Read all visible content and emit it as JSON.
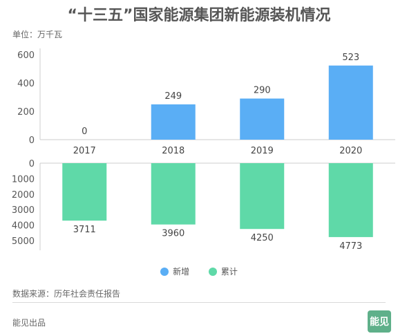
{
  "title": "“十三五”国家能源集团新能源装机情况",
  "unit_label": "单位：万千瓦",
  "chart_data": {
    "type": "bar",
    "categories": [
      "2017",
      "2018",
      "2019",
      "2020"
    ],
    "series": [
      {
        "name": "新增",
        "values": [
          0,
          249,
          290,
          523
        ],
        "color": "#5aaef5"
      },
      {
        "name": "累计",
        "values": [
          3711,
          3960,
          4250,
          4773
        ],
        "color": "#5fd9a8"
      }
    ],
    "top_axis": {
      "ylim": [
        0,
        600
      ],
      "ticks": [
        0,
        200,
        400,
        600
      ]
    },
    "bottom_axis": {
      "ylim": [
        0,
        5000
      ],
      "ticks": [
        0,
        1000,
        2000,
        3000,
        4000,
        5000
      ],
      "inverted": true
    },
    "legend_position": "bottom-center"
  },
  "legend": [
    {
      "label": "新增",
      "color": "#5aaef5"
    },
    {
      "label": "累计",
      "color": "#5fd9a8"
    }
  ],
  "source": "数据来源：历年社会责任报告",
  "footer": "能见出品",
  "logo_text": "能见"
}
